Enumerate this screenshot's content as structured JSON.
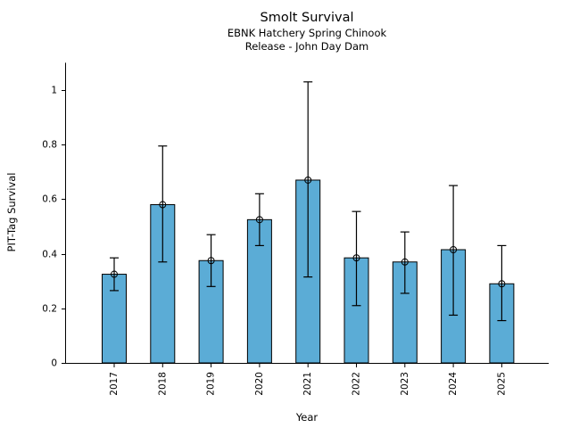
{
  "figure": {
    "title": "Smolt Survival",
    "subtitle1": "EBNK Hatchery Spring Chinook",
    "subtitle2": "Release - John Day Dam"
  },
  "chart_data": {
    "type": "bar",
    "title": "Smolt Survival",
    "subtitle": [
      "EBNK Hatchery Spring Chinook",
      "Release - John Day Dam"
    ],
    "xlabel": "Year",
    "ylabel": "PIT-Tag Survival",
    "categories": [
      "2017",
      "2018",
      "2019",
      "2020",
      "2021",
      "2022",
      "2023",
      "2024",
      "2025"
    ],
    "values": [
      0.325,
      0.58,
      0.375,
      0.525,
      0.67,
      0.385,
      0.37,
      0.415,
      0.29
    ],
    "error_low": [
      0.265,
      0.37,
      0.28,
      0.43,
      0.315,
      0.21,
      0.255,
      0.175,
      0.155
    ],
    "error_high": [
      0.385,
      0.795,
      0.47,
      0.62,
      1.03,
      0.555,
      0.48,
      0.65,
      0.43
    ],
    "yticks": [
      0,
      0.2,
      0.4,
      0.6,
      0.8,
      1
    ],
    "ytick_labels": [
      "0",
      "0.2",
      "0.4",
      "0.6",
      "0.8",
      "1"
    ],
    "ylim": [
      0,
      1.1
    ],
    "grid": false,
    "legend": "none",
    "bar_color": "#5BACD6",
    "bar_edge_color": "#000000",
    "errorbar_color": "#000000",
    "marker": "open-circle"
  }
}
